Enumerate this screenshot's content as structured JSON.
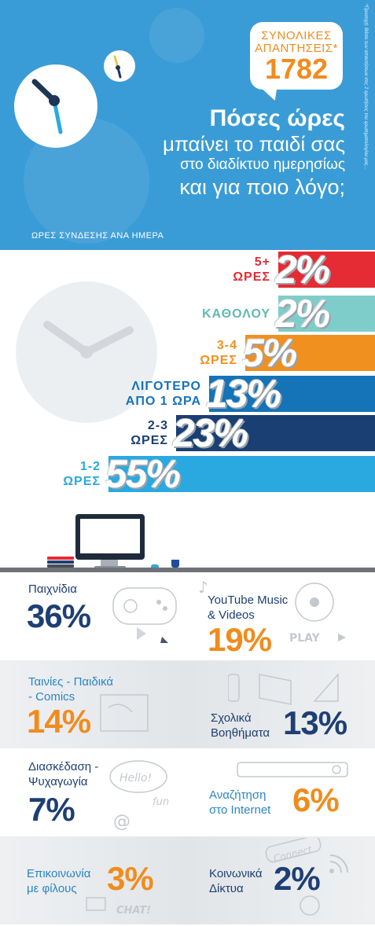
{
  "header": {
    "total_label_line1": "ΣΥΝΟΛΙΚΕΣ",
    "total_label_line2": "ΑΠΑΝΤΗΣΕΙΣ*",
    "total_value": "1782",
    "title_line1": "Πόσες ώρες",
    "title_line2": "μπαίνει το παιδί σας",
    "title_line3": "στο διαδίκτυο ημερησίως",
    "title_line4": "και για ποιο λόγο;",
    "footnote": "*Προσοχή: Βάσει των απαντήσεων στις 2 ερωτήσεις του ερωτηματολογίου μας...",
    "section_label": "ΩΡΕΣ ΣΥΝΔΕΣΗΣ ΑΝΑ ΗΜΕΡΑ",
    "colors": {
      "background": "#3a9cd6",
      "accent": "#f08c1e"
    }
  },
  "chart_data": [
    {
      "type": "bar",
      "orientation": "horizontal",
      "title": "ΩΡΕΣ ΣΥΝΔΕΣΗΣ ΑΝΑ ΗΜΕΡΑ",
      "categories": [
        {
          "line1": "5+",
          "line2": "ΩΡΕΣ"
        },
        {
          "line1": "ΚΑΘΟΛΟΥ",
          "line2": ""
        },
        {
          "line1": "3-4",
          "line2": "ΩΡΕΣ"
        },
        {
          "line1": "ΛΙΓΟΤΕΡΟ",
          "line2": "ΑΠΟ 1 ΩΡΑ"
        },
        {
          "line1": "2-3",
          "line2": "ΩΡΕΣ"
        },
        {
          "line1": "1-2",
          "line2": "ΩΡΕΣ"
        }
      ],
      "values": [
        2,
        2,
        5,
        13,
        23,
        55
      ],
      "value_labels": [
        "2%",
        "2%",
        "5%",
        "13%",
        "23%",
        "55%"
      ],
      "colors": [
        "#e52b33",
        "#7fcdca",
        "#f0901e",
        "#1573b8",
        "#1a3f72",
        "#2aa9e0"
      ],
      "label_colors": [
        "#e52b33",
        "#5fb9b6",
        "#f0901e",
        "#1573b8",
        "#1a3f72",
        "#2aa9e0"
      ],
      "unit": "%"
    },
    {
      "type": "table",
      "title": "",
      "rows": [
        {
          "label": "Παιχνίδια",
          "value": "36%",
          "color": "#1e3f74",
          "icon": "gamepad-sketch-icon"
        },
        {
          "label": "YouTube Music & Videos",
          "value": "19%",
          "color": "#f08c1e",
          "icon": "music-disc-sketch-icon"
        },
        {
          "label": "Ταινίες - Παιδικά - Comics",
          "value": "14%",
          "color": "#f08c1e",
          "icon": "film-sketch-icon"
        },
        {
          "label": "Σχολικά Βοηθήματα",
          "value": "13%",
          "color": "#1e3f74",
          "icon": "book-sketch-icon"
        },
        {
          "label": "Διασκέδαση - Ψυχαγωγία",
          "value": "7%",
          "color": "#1e3f74",
          "icon": "speech-bubble-sketch-icon"
        },
        {
          "label": "Αναζήτηση στο Internet",
          "value": "6%",
          "color": "#f08c1e",
          "icon": "search-bar-sketch-icon"
        },
        {
          "label": "Επικοινωνία με φίλους",
          "value": "3%",
          "color": "#f08c1e",
          "icon": "chat-sketch-icon"
        },
        {
          "label": "Κοινωνικά Δίκτυα",
          "value": "2%",
          "color": "#1e3f74",
          "icon": "network-sketch-icon"
        }
      ]
    }
  ],
  "activities": {
    "games": {
      "label": "Παιχνίδια",
      "value": "36%"
    },
    "youtube": {
      "label_line1": "YouTube Music",
      "label_line2": "& Videos",
      "value": "19%",
      "play_text": "PLAY"
    },
    "movies": {
      "label_line1": "Ταινίες - Παιδικά",
      "label_line2": "- Comics",
      "value": "14%"
    },
    "school": {
      "label_line1": "Σχολικά",
      "label_line2": "Βοηθήματα",
      "value": "13%"
    },
    "fun": {
      "label_line1": "Διασκέδαση -",
      "label_line2": "Ψυχαγωγία",
      "value": "7%",
      "hello_text": "Hello!",
      "fun_text": "fun",
      "at_text": "@"
    },
    "search": {
      "label_line1": "Αναζήτηση",
      "label_line2": "στο Internet",
      "value": "6%"
    },
    "friends": {
      "label_line1": "Επικοινωνία",
      "label_line2": "με φίλους",
      "value": "3%",
      "chat_text": "CHAT!"
    },
    "social": {
      "label_line1": "Κοινωνικά",
      "label_line2": "Δίκτυα",
      "value": "2%",
      "connect_text": "Connect"
    }
  }
}
